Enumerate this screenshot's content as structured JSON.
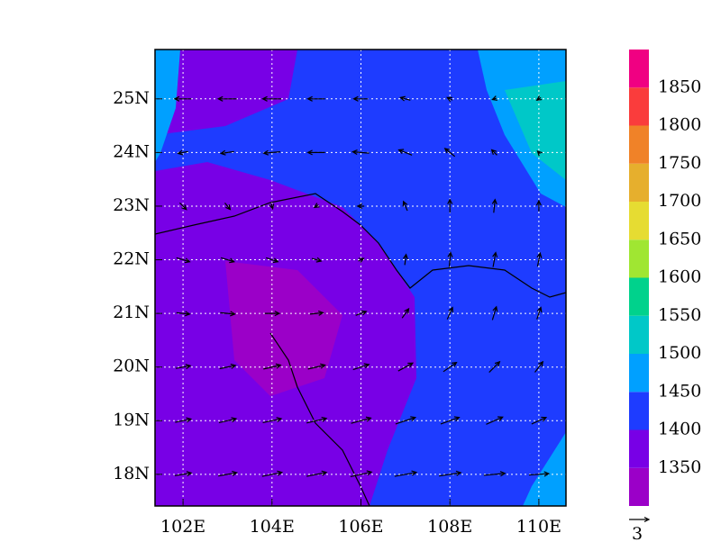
{
  "map": {
    "xlim": [
      101.37,
      110.61
    ],
    "ylim": [
      17.41,
      25.92
    ],
    "xticks": [
      {
        "value": 102,
        "label": "102E"
      },
      {
        "value": 104,
        "label": "104E"
      },
      {
        "value": 106,
        "label": "106E"
      },
      {
        "value": 108,
        "label": "108E"
      },
      {
        "value": 110,
        "label": "110E"
      }
    ],
    "yticks": [
      {
        "value": 18,
        "label": "18N"
      },
      {
        "value": 19,
        "label": "19N"
      },
      {
        "value": 20,
        "label": "20N"
      },
      {
        "value": 21,
        "label": "21N"
      },
      {
        "value": 22,
        "label": "22N"
      },
      {
        "value": 23,
        "label": "23N"
      },
      {
        "value": 24,
        "label": "24N"
      },
      {
        "value": 25,
        "label": "25N"
      }
    ],
    "xgrid": [
      102,
      104,
      106,
      108,
      110
    ],
    "ygrid": [
      18,
      19,
      20,
      21,
      22,
      23,
      24,
      25
    ],
    "grid": true
  },
  "colorbar": {
    "levels": [
      1350,
      1400,
      1450,
      1500,
      1550,
      1600,
      1650,
      1700,
      1750,
      1800,
      1850
    ],
    "colors": [
      "#9b00c8",
      "#7800e6",
      "#1e3cff",
      "#00a0ff",
      "#00c8c8",
      "#00d28c",
      "#a0e632",
      "#e6dc32",
      "#e6af2d",
      "#f08228",
      "#fa3c3c",
      "#f00082"
    ]
  },
  "reference_vector": 3,
  "wind": {
    "lons": [
      102,
      103,
      104,
      105,
      106,
      107,
      108,
      109,
      110
    ],
    "lats": [
      18,
      19,
      20,
      21,
      22,
      23,
      24,
      25
    ],
    "u": [
      [
        2.5,
        2.8,
        3,
        3,
        3.2,
        3.3,
        3.3,
        3.2,
        3
      ],
      [
        2.4,
        2.6,
        2.8,
        3,
        3,
        3,
        2.8,
        2.5,
        2.2
      ],
      [
        2.2,
        2.4,
        2.6,
        2.6,
        2.4,
        2.2,
        2,
        1.6,
        1.2
      ],
      [
        2,
        2.2,
        2.2,
        2,
        1.6,
        1,
        0.8,
        0.6,
        0.6
      ],
      [
        2,
        2,
        1.8,
        1.4,
        0.8,
        0.2,
        0.2,
        0.4,
        0.4
      ],
      [
        1,
        0.8,
        0.2,
        -0.6,
        -1,
        -0.6,
        0,
        0.2,
        0
      ],
      [
        -1.5,
        -2,
        -2.5,
        -2.6,
        -2.5,
        -2,
        -1.5,
        -0.8,
        -0.4
      ],
      [
        -2.5,
        -2.8,
        -2.8,
        -2.6,
        -2.2,
        -1.5,
        -0.8,
        -0.6,
        -0.6
      ]
    ],
    "v": [
      [
        0.4,
        0.5,
        0.6,
        0.6,
        0.7,
        0.6,
        0.5,
        0.3,
        0.2
      ],
      [
        0.5,
        0.6,
        0.6,
        0.7,
        0.8,
        1,
        1,
        1.1,
        1
      ],
      [
        0.4,
        0.5,
        0.6,
        0.6,
        0.8,
        1.2,
        1.4,
        1.6,
        1.6
      ],
      [
        -0.2,
        -0.2,
        0,
        0.2,
        0.6,
        1.4,
        1.8,
        2,
        1.8
      ],
      [
        -0.6,
        -0.6,
        -0.6,
        -0.4,
        0.4,
        1.6,
        2.2,
        2.2,
        2
      ],
      [
        -1,
        -1,
        -0.8,
        -0.4,
        0,
        1.4,
        2,
        2,
        1.6
      ],
      [
        -0.3,
        -0.3,
        -0.2,
        0,
        0.2,
        0.8,
        1.2,
        0.8,
        0.4
      ],
      [
        0,
        0,
        0,
        0,
        0,
        0.4,
        0.4,
        -0.2,
        -0.4
      ]
    ]
  }
}
